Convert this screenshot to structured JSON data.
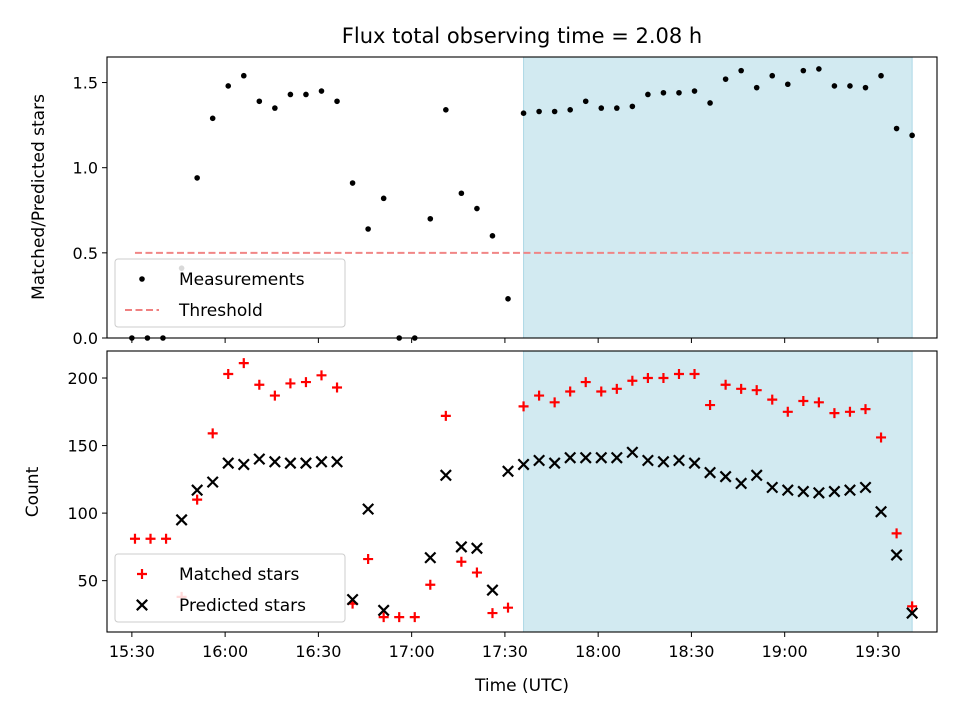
{
  "chart_data": [
    {
      "type": "scatter",
      "title": "Flux total observing time = 2.08 h",
      "xlabel": "",
      "ylabel": "Matched/Predicted stars",
      "x_unit": "minutes",
      "ylim": [
        0,
        1.65
      ],
      "yticks": [
        "0.0",
        "0.5",
        "1.0",
        "1.5"
      ],
      "ytick_values": [
        0,
        0.5,
        1.0,
        1.5
      ],
      "shaded_region": {
        "x_start": "17:36",
        "x_end": "19:41",
        "color": "#add8e6"
      },
      "legend": {
        "position": "lower-left",
        "entries": [
          "Measurements",
          "Threshold"
        ]
      },
      "series": [
        {
          "name": "Measurements",
          "marker": "dot",
          "color": "#000000",
          "points": [
            [
              "15:30",
              0.0
            ],
            [
              "15:35",
              0.0
            ],
            [
              "15:40",
              0.0
            ],
            [
              "15:46",
              0.41
            ],
            [
              "15:51",
              0.94
            ],
            [
              "15:56",
              1.29
            ],
            [
              "16:01",
              1.48
            ],
            [
              "16:06",
              1.54
            ],
            [
              "16:11",
              1.39
            ],
            [
              "16:16",
              1.35
            ],
            [
              "16:21",
              1.43
            ],
            [
              "16:26",
              1.43
            ],
            [
              "16:31",
              1.45
            ],
            [
              "16:36",
              1.39
            ],
            [
              "16:41",
              0.91
            ],
            [
              "16:46",
              0.64
            ],
            [
              "16:51",
              0.82
            ],
            [
              "16:56",
              0.0
            ],
            [
              "17:01",
              0.0
            ],
            [
              "17:06",
              0.7
            ],
            [
              "17:11",
              1.34
            ],
            [
              "17:16",
              0.85
            ],
            [
              "17:21",
              0.76
            ],
            [
              "17:26",
              0.6
            ],
            [
              "17:31",
              0.23
            ],
            [
              "17:36",
              1.32
            ],
            [
              "17:41",
              1.33
            ],
            [
              "17:46",
              1.33
            ],
            [
              "17:51",
              1.34
            ],
            [
              "17:56",
              1.39
            ],
            [
              "18:01",
              1.35
            ],
            [
              "18:06",
              1.35
            ],
            [
              "18:11",
              1.36
            ],
            [
              "18:16",
              1.43
            ],
            [
              "18:21",
              1.44
            ],
            [
              "18:26",
              1.44
            ],
            [
              "18:31",
              1.45
            ],
            [
              "18:36",
              1.38
            ],
            [
              "18:41",
              1.52
            ],
            [
              "18:46",
              1.57
            ],
            [
              "18:51",
              1.47
            ],
            [
              "18:56",
              1.54
            ],
            [
              "19:01",
              1.49
            ],
            [
              "19:06",
              1.57
            ],
            [
              "19:11",
              1.58
            ],
            [
              "19:16",
              1.48
            ],
            [
              "19:21",
              1.48
            ],
            [
              "19:26",
              1.47
            ],
            [
              "19:31",
              1.54
            ],
            [
              "19:36",
              1.23
            ],
            [
              "19:41",
              1.19
            ]
          ]
        },
        {
          "name": "Threshold",
          "line": "dashed",
          "color": "#f08080",
          "points": [
            [
              "15:31",
              0.5
            ],
            [
              "19:41",
              0.5
            ]
          ]
        }
      ]
    },
    {
      "type": "scatter",
      "title": "",
      "xlabel": "Time (UTC)",
      "ylabel": "Count",
      "x_unit": "minutes",
      "xlim": [
        "15:22",
        "19:49"
      ],
      "xticks": [
        "15:30",
        "16:00",
        "16:30",
        "17:00",
        "17:30",
        "18:00",
        "18:30",
        "19:00",
        "19:30"
      ],
      "ylim": [
        12,
        220
      ],
      "yticks": [
        "50",
        "100",
        "150",
        "200"
      ],
      "ytick_values": [
        50,
        100,
        150,
        200
      ],
      "shaded_region": {
        "x_start": "17:36",
        "x_end": "19:41",
        "color": "#add8e6"
      },
      "legend": {
        "position": "lower-left",
        "entries": [
          "Matched stars",
          "Predicted stars"
        ]
      },
      "series": [
        {
          "name": "Matched stars",
          "marker": "plus",
          "color": "#ff0000",
          "points": [
            [
              "15:31",
              81
            ],
            [
              "15:36",
              81
            ],
            [
              "15:41",
              81
            ],
            [
              "15:46",
              38
            ],
            [
              "15:51",
              110
            ],
            [
              "15:56",
              159
            ],
            [
              "16:01",
              203
            ],
            [
              "16:06",
              211
            ],
            [
              "16:11",
              195
            ],
            [
              "16:16",
              187
            ],
            [
              "16:21",
              196
            ],
            [
              "16:26",
              197
            ],
            [
              "16:31",
              202
            ],
            [
              "16:36",
              193
            ],
            [
              "16:41",
              33
            ],
            [
              "16:46",
              66
            ],
            [
              "16:51",
              23
            ],
            [
              "16:56",
              23
            ],
            [
              "17:01",
              23
            ],
            [
              "17:06",
              47
            ],
            [
              "17:11",
              172
            ],
            [
              "17:16",
              64
            ],
            [
              "17:21",
              56
            ],
            [
              "17:26",
              26
            ],
            [
              "17:31",
              30
            ],
            [
              "17:36",
              179
            ],
            [
              "17:41",
              187
            ],
            [
              "17:46",
              182
            ],
            [
              "17:51",
              190
            ],
            [
              "17:56",
              197
            ],
            [
              "18:01",
              190
            ],
            [
              "18:06",
              192
            ],
            [
              "18:11",
              198
            ],
            [
              "18:16",
              200
            ],
            [
              "18:21",
              200
            ],
            [
              "18:26",
              203
            ],
            [
              "18:31",
              203
            ],
            [
              "18:36",
              180
            ],
            [
              "18:41",
              195
            ],
            [
              "18:46",
              192
            ],
            [
              "18:51",
              191
            ],
            [
              "18:56",
              184
            ],
            [
              "19:01",
              175
            ],
            [
              "19:06",
              183
            ],
            [
              "19:11",
              182
            ],
            [
              "19:16",
              174
            ],
            [
              "19:21",
              175
            ],
            [
              "19:26",
              177
            ],
            [
              "19:31",
              156
            ],
            [
              "19:36",
              85
            ],
            [
              "19:41",
              31
            ]
          ]
        },
        {
          "name": "Predicted stars",
          "marker": "x",
          "color": "#000000",
          "points": [
            [
              "15:46",
              95
            ],
            [
              "15:51",
              117
            ],
            [
              "15:56",
              123
            ],
            [
              "16:01",
              137
            ],
            [
              "16:06",
              136
            ],
            [
              "16:11",
              140
            ],
            [
              "16:16",
              138
            ],
            [
              "16:21",
              137
            ],
            [
              "16:26",
              137
            ],
            [
              "16:31",
              138
            ],
            [
              "16:36",
              138
            ],
            [
              "16:41",
              36
            ],
            [
              "16:46",
              103
            ],
            [
              "16:51",
              28
            ],
            [
              "17:06",
              67
            ],
            [
              "17:11",
              128
            ],
            [
              "17:16",
              75
            ],
            [
              "17:21",
              74
            ],
            [
              "17:26",
              43
            ],
            [
              "17:31",
              131
            ],
            [
              "17:36",
              136
            ],
            [
              "17:41",
              139
            ],
            [
              "17:46",
              137
            ],
            [
              "17:51",
              141
            ],
            [
              "17:56",
              141
            ],
            [
              "18:01",
              141
            ],
            [
              "18:06",
              141
            ],
            [
              "18:11",
              145
            ],
            [
              "18:16",
              139
            ],
            [
              "18:21",
              138
            ],
            [
              "18:26",
              139
            ],
            [
              "18:31",
              137
            ],
            [
              "18:36",
              130
            ],
            [
              "18:41",
              127
            ],
            [
              "18:46",
              122
            ],
            [
              "18:51",
              128
            ],
            [
              "18:56",
              119
            ],
            [
              "19:01",
              117
            ],
            [
              "19:06",
              116
            ],
            [
              "19:11",
              115
            ],
            [
              "19:16",
              116
            ],
            [
              "19:21",
              117
            ],
            [
              "19:26",
              119
            ],
            [
              "19:31",
              101
            ],
            [
              "19:36",
              69
            ],
            [
              "19:41",
              26
            ]
          ]
        }
      ]
    }
  ]
}
